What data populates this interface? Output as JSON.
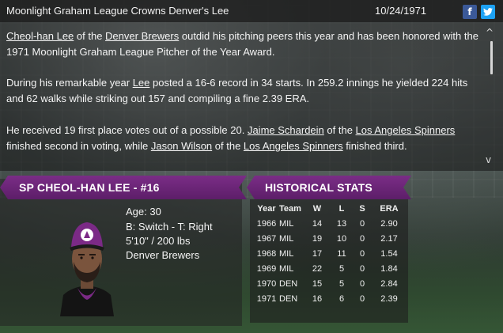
{
  "header": {
    "title": "Moonlight Graham League Crowns Denver's Lee",
    "date": "10/24/1971",
    "facebook_glyph": "f",
    "twitter_glyph": "t"
  },
  "article": {
    "p1": {
      "link_player": "Cheol-han Lee",
      "t1": " of the ",
      "link_team": "Denver Brewers",
      "t2": " outdid his pitching peers this year and has been honored with the 1971 Moonlight Graham League Pitcher of the Year Award."
    },
    "p2": {
      "t1": "During his remarkable year ",
      "link_player": "Lee",
      "t2": " posted a 16-6 record in 34 starts. In 259.2 innings he yielded 224 hits and 62 walks while striking out 157 and compiling a fine 2.39 ERA."
    },
    "p3": {
      "t1": "He received 19 first place votes out of a possible 20. ",
      "link_second": "Jaime Schardein",
      "t2": " of the ",
      "link_second_team": "Los Angeles Spinners",
      "t3": " finished second in voting, while ",
      "link_third": "Jason Wilson",
      "t4": " of the ",
      "link_third_team": "Los Angeles Spinners",
      "t5": " finished third."
    },
    "scroll_up_glyph": "^",
    "scroll_down_glyph": "v"
  },
  "player": {
    "banner": "SP CHEOL-HAN LEE - #16",
    "age": "Age: 30",
    "bats_throws": "B: Switch - T: Right",
    "size": "5'10\" / 200 lbs",
    "team": "Denver Brewers",
    "colors": {
      "cap": "#7b2a86",
      "jersey": "#111111",
      "accent": "#7b2a86"
    }
  },
  "stats": {
    "banner": "HISTORICAL STATS",
    "headers": [
      "Year",
      "Team",
      "W",
      "L",
      "S",
      "ERA"
    ],
    "rows": [
      [
        "1966",
        "MIL",
        "14",
        "13",
        "0",
        "2.90"
      ],
      [
        "1967",
        "MIL",
        "19",
        "10",
        "0",
        "2.17"
      ],
      [
        "1968",
        "MIL",
        "17",
        "11",
        "0",
        "1.54"
      ],
      [
        "1969",
        "MIL",
        "22",
        "5",
        "0",
        "1.84"
      ],
      [
        "1970",
        "DEN",
        "15",
        "5",
        "0",
        "2.84"
      ],
      [
        "1971",
        "DEN",
        "16",
        "6",
        "0",
        "2.39"
      ]
    ]
  },
  "colors": {
    "banner": "#6a2476",
    "facebook": "#3b5998",
    "twitter": "#1da1f2"
  }
}
